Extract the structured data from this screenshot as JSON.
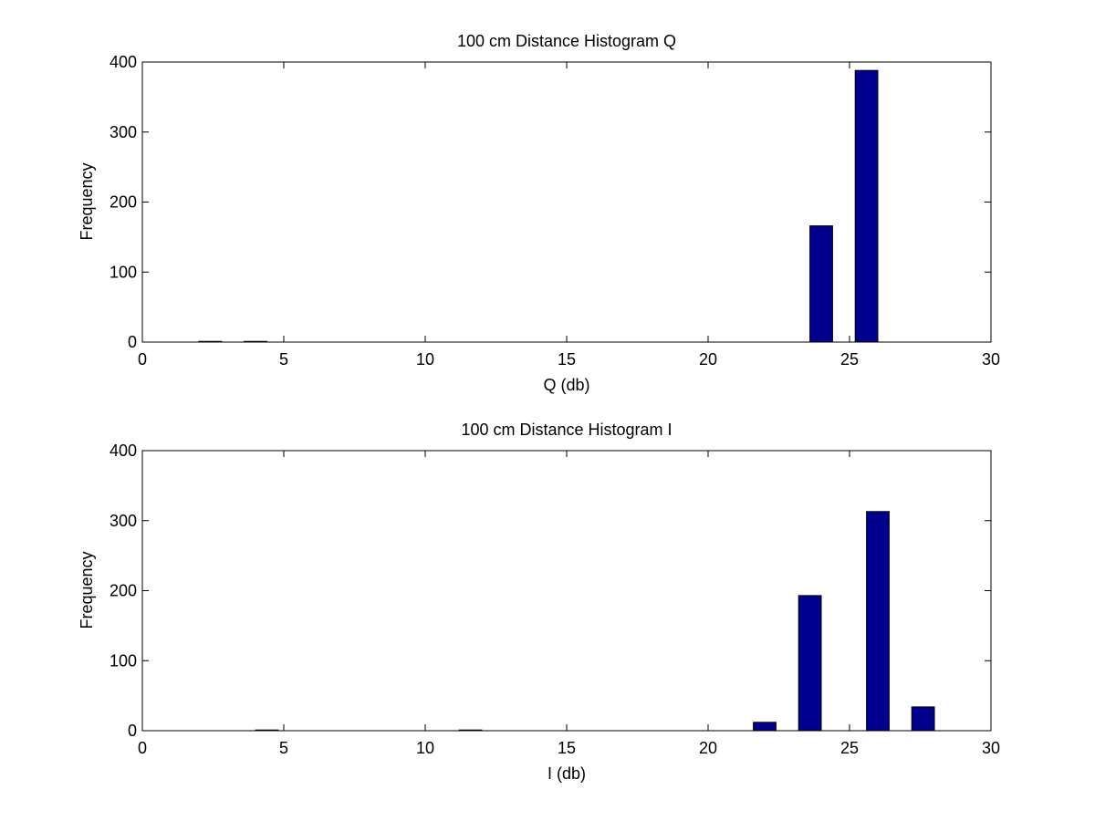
{
  "chart_data": [
    {
      "type": "bar",
      "title": "100 cm Distance Histogram Q",
      "xlabel": "Q (db)",
      "ylabel": "Frequency",
      "xlim": [
        0,
        30
      ],
      "ylim": [
        0,
        400
      ],
      "xticks": [
        0,
        5,
        10,
        15,
        20,
        25,
        30
      ],
      "yticks": [
        0,
        100,
        200,
        300,
        400
      ],
      "bin_width": 1.6,
      "bar_width": 0.8,
      "x": [
        2.4,
        4.0,
        24.0,
        25.6
      ],
      "values": [
        1,
        1,
        166,
        388
      ],
      "color": "#00008F",
      "grid": false
    },
    {
      "type": "bar",
      "title": "100 cm Distance Histogram I",
      "xlabel": "I (db)",
      "ylabel": "Frequency",
      "xlim": [
        0,
        30
      ],
      "ylim": [
        0,
        400
      ],
      "xticks": [
        0,
        5,
        10,
        15,
        20,
        25,
        30
      ],
      "yticks": [
        0,
        100,
        200,
        300,
        400
      ],
      "bin_width": 1.6,
      "bar_width": 0.8,
      "x": [
        4.4,
        11.6,
        22.0,
        23.6,
        26.0,
        27.6
      ],
      "values": [
        1,
        1,
        12,
        193,
        313,
        34
      ],
      "color": "#00008F",
      "grid": false
    }
  ]
}
